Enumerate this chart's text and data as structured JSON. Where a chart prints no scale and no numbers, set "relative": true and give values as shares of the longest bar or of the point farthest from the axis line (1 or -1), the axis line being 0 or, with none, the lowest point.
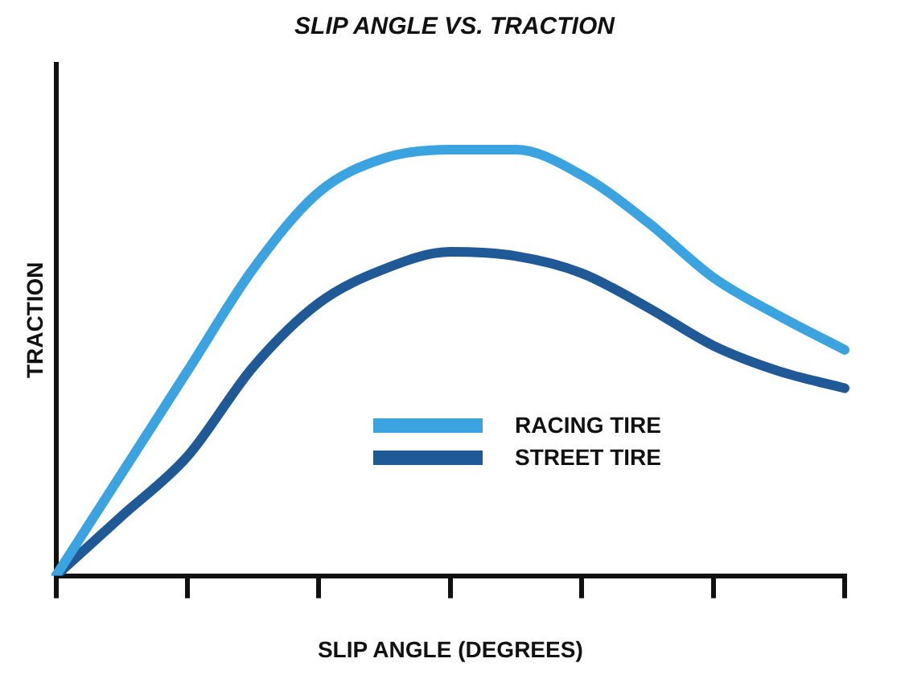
{
  "chart_data": {
    "type": "line",
    "title": "SLIP ANGLE VS. TRACTION",
    "xlabel": "SLIP ANGLE (DEGREES)",
    "ylabel": "TRACTION",
    "relative": true,
    "categories": [
      null,
      null,
      null,
      null,
      null,
      null,
      null,
      null,
      null,
      null,
      null,
      null,
      null
    ],
    "series": [
      {
        "name": "RACING TIRE",
        "color": "#3aa3e0",
        "values": [
          0,
          0.24,
          0.48,
          0.72,
          0.9,
          0.98,
          1,
          1,
          0.94,
          0.83,
          0.7,
          0.61,
          0.53
        ]
      },
      {
        "name": "STREET TIRE",
        "color": "#1f5a96",
        "values": [
          0,
          0.14,
          0.28,
          0.49,
          0.64,
          0.72,
          0.76,
          0.75,
          0.71,
          0.63,
          0.54,
          0.48,
          0.44
        ]
      }
    ],
    "legend": "bottom right",
    "marker": "none",
    "line_style": "solid",
    "grid": false
  }
}
